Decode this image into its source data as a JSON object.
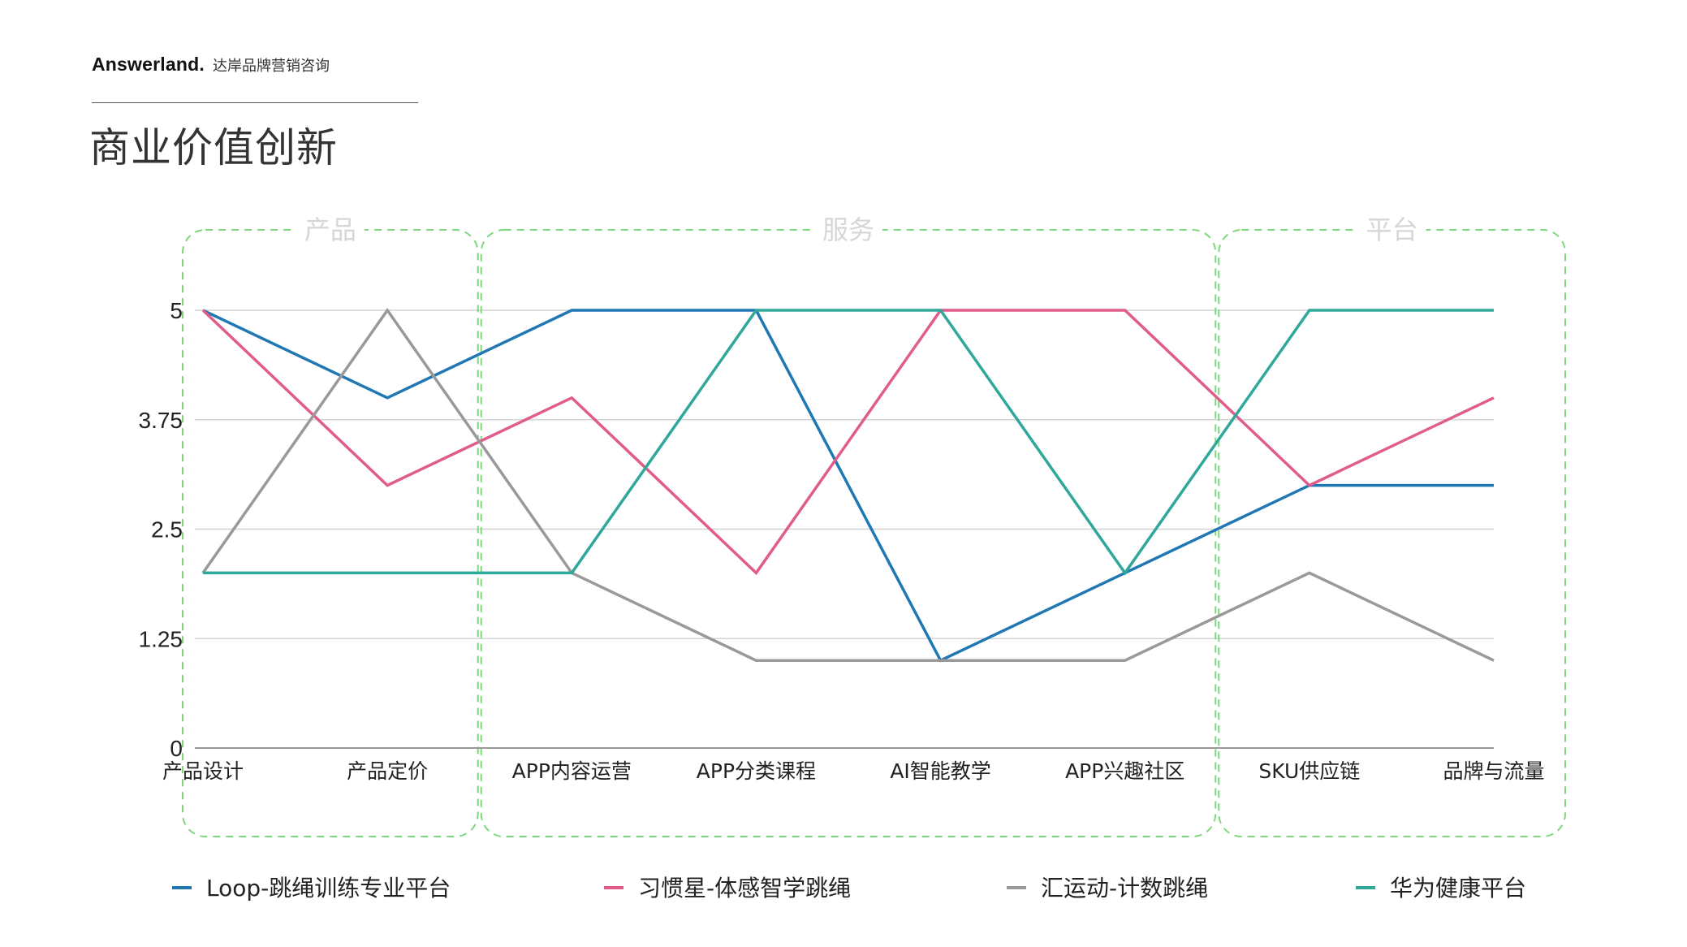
{
  "header": {
    "brand_name": "Answerland.",
    "brand_subtitle": "达岸品牌营销咨询",
    "page_title": "商业价值创新"
  },
  "chart_data": {
    "type": "line",
    "categories": [
      "产品设计",
      "产品定价",
      "APP内容运营",
      "APP分类课程",
      "AI智能教学",
      "APP兴趣社区",
      "SKU供应链",
      "品牌与流量"
    ],
    "y_ticks": [
      "0",
      "1.25",
      "2.5",
      "3.75",
      "5"
    ],
    "ylim": [
      0,
      5
    ],
    "grid": true,
    "legend_position": "bottom",
    "groups": [
      {
        "label": "产品",
        "from": 0,
        "to": 1
      },
      {
        "label": "服务",
        "from": 2,
        "to": 5
      },
      {
        "label": "平台",
        "from": 6,
        "to": 7
      }
    ],
    "series": [
      {
        "name": "Loop-跳绳训练专业平台",
        "color": "#1f77b4",
        "values": [
          5,
          4,
          5,
          5,
          1,
          2,
          3,
          3
        ]
      },
      {
        "name": "习惯星-体感智学跳绳",
        "color": "#e05c8a",
        "values": [
          5,
          3,
          4,
          2,
          5,
          5,
          3,
          4
        ]
      },
      {
        "name": "汇运动-计数跳绳",
        "color": "#999999",
        "values": [
          2,
          5,
          2,
          1,
          1,
          1,
          2,
          1
        ]
      },
      {
        "name": "华为健康平台",
        "color": "#2fa89a",
        "values": [
          2,
          2,
          2,
          5,
          5,
          2,
          5,
          5
        ]
      }
    ],
    "group_border_color": "#7dd87a"
  }
}
